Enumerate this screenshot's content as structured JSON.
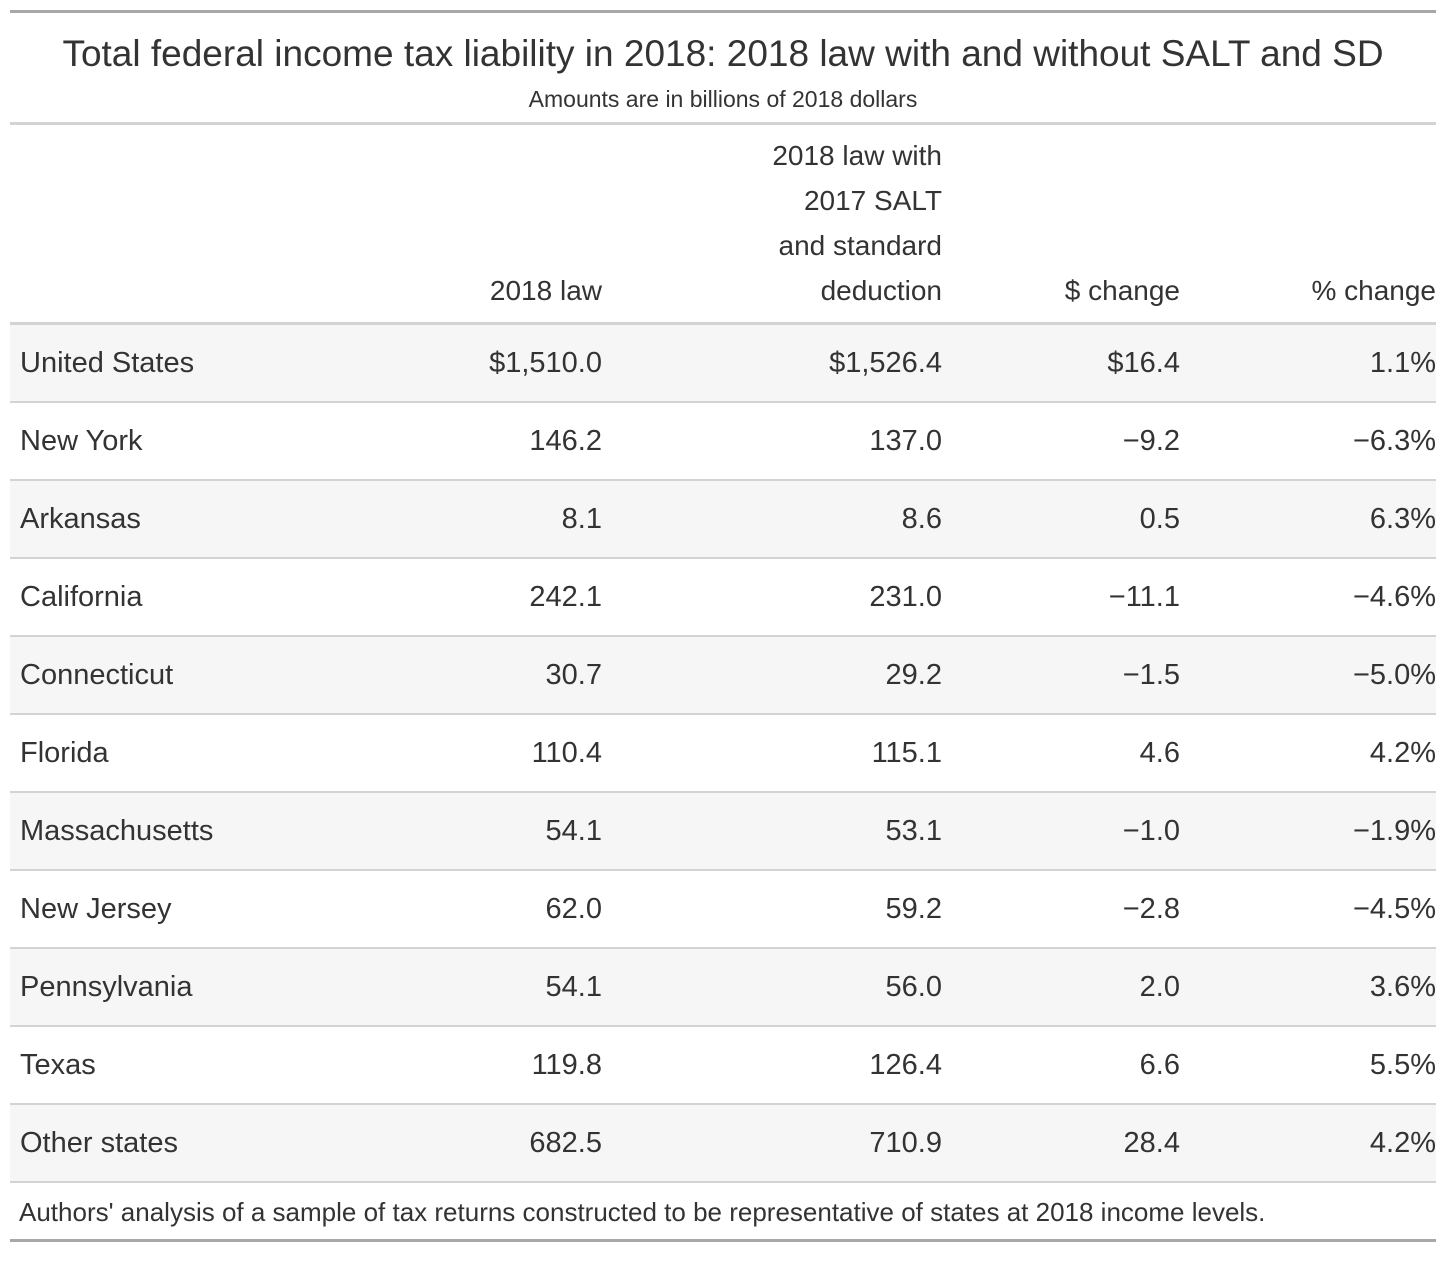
{
  "title": "Total federal income tax liability in 2018: 2018 law with and without SALT and SD",
  "subtitle": "Amounts are in billions of 2018 dollars",
  "footnote": "Authors' analysis of a sample of tax returns constructed to be representative of states at 2018 income levels.",
  "chart_data": {
    "type": "table",
    "columns": [
      {
        "label_lines": [
          ""
        ]
      },
      {
        "label_lines": [
          "2018 law"
        ]
      },
      {
        "label_lines": [
          "2018 law with",
          "2017 SALT",
          "and standard",
          "deduction"
        ]
      },
      {
        "label_lines": [
          "$ change"
        ]
      },
      {
        "label_lines": [
          "% change"
        ]
      }
    ],
    "rows": [
      {
        "cells": [
          "United States",
          "$1,510.0",
          "$1,526.4",
          "$16.4",
          "1.1%"
        ]
      },
      {
        "cells": [
          "New York",
          "146.2",
          "137.0",
          "−9.2",
          "−6.3%"
        ]
      },
      {
        "cells": [
          "Arkansas",
          "8.1",
          "8.6",
          "0.5",
          "6.3%"
        ]
      },
      {
        "cells": [
          "California",
          "242.1",
          "231.0",
          "−11.1",
          "−4.6%"
        ]
      },
      {
        "cells": [
          "Connecticut",
          "30.7",
          "29.2",
          "−1.5",
          "−5.0%"
        ]
      },
      {
        "cells": [
          "Florida",
          "110.4",
          "115.1",
          "4.6",
          "4.2%"
        ]
      },
      {
        "cells": [
          "Massachusetts",
          "54.1",
          "53.1",
          "−1.0",
          "−1.9%"
        ]
      },
      {
        "cells": [
          "New Jersey",
          "62.0",
          "59.2",
          "−2.8",
          "−4.5%"
        ]
      },
      {
        "cells": [
          "Pennsylvania",
          "54.1",
          "56.0",
          "2.0",
          "3.6%"
        ]
      },
      {
        "cells": [
          "Texas",
          "119.8",
          "126.4",
          "6.6",
          "5.5%"
        ]
      },
      {
        "cells": [
          "Other states",
          "682.5",
          "710.9",
          "28.4",
          "4.2%"
        ]
      }
    ]
  },
  "colors": {
    "text": "#333333",
    "rule_dark": "#a8a8a8",
    "rule_light": "#d3d3d3",
    "row_shade": "#f6f6f6"
  }
}
